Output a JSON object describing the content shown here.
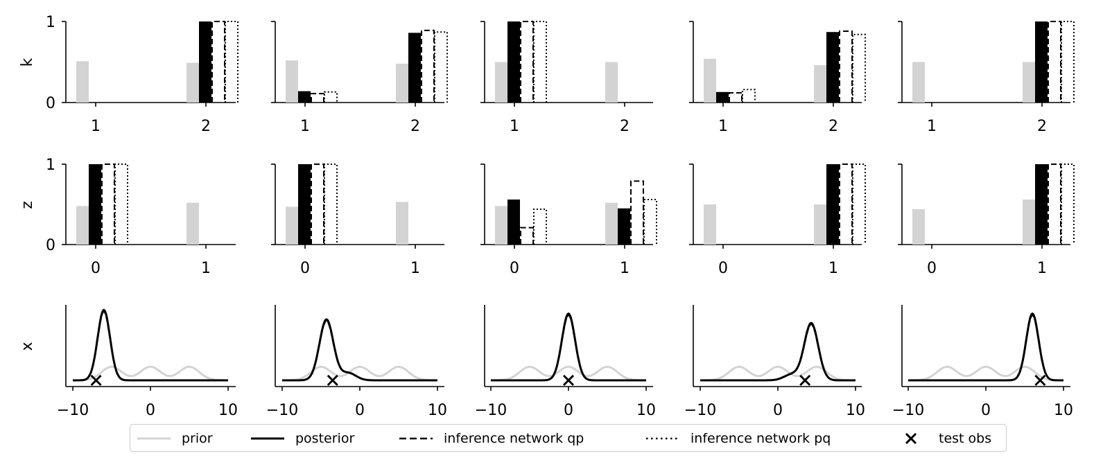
{
  "chart_data": {
    "type": "grid of bar charts and line plots",
    "columns": 5,
    "row_labels": [
      "k",
      "z",
      "x"
    ],
    "legend": {
      "placement": "bottom-center",
      "entries": [
        {
          "label": "prior",
          "style": "light gray solid line",
          "color": "#d3d3d3"
        },
        {
          "label": "posterior",
          "style": "black solid line",
          "color": "#000000"
        },
        {
          "label": "inference network qp",
          "style": "black dashed line",
          "color": "#000000"
        },
        {
          "label": "inference network pq",
          "style": "black dotted line",
          "color": "#000000"
        },
        {
          "label": "test obs",
          "style": "black x marker",
          "color": "#000000"
        }
      ]
    },
    "k_rows": {
      "categories": [
        "1",
        "2"
      ],
      "ylim": [
        0,
        1
      ],
      "yticks": [
        "0",
        "1"
      ],
      "panels": [
        {
          "prior": [
            0.51,
            0.49
          ],
          "posterior": [
            0.0,
            1.0
          ],
          "qp": [
            0.0,
            1.0
          ],
          "pq": [
            0.0,
            1.0
          ]
        },
        {
          "prior": [
            0.52,
            0.48
          ],
          "posterior": [
            0.14,
            0.86
          ],
          "qp": [
            0.11,
            0.89
          ],
          "pq": [
            0.13,
            0.87
          ]
        },
        {
          "prior": [
            0.5,
            0.5
          ],
          "posterior": [
            1.0,
            0.0
          ],
          "qp": [
            1.0,
            0.0
          ],
          "pq": [
            1.0,
            0.0
          ]
        },
        {
          "prior": [
            0.54,
            0.46
          ],
          "posterior": [
            0.13,
            0.87
          ],
          "qp": [
            0.12,
            0.88
          ],
          "pq": [
            0.16,
            0.84
          ]
        },
        {
          "prior": [
            0.5,
            0.5
          ],
          "posterior": [
            0.0,
            1.0
          ],
          "qp": [
            0.0,
            1.0
          ],
          "pq": [
            0.0,
            1.0
          ]
        }
      ]
    },
    "z_rows": {
      "categories": [
        "0",
        "1"
      ],
      "ylim": [
        0,
        1
      ],
      "yticks": [
        "0",
        "1"
      ],
      "panels": [
        {
          "prior": [
            0.48,
            0.52
          ],
          "posterior": [
            1.0,
            0.0
          ],
          "qp": [
            1.0,
            0.0
          ],
          "pq": [
            1.0,
            0.0
          ]
        },
        {
          "prior": [
            0.47,
            0.53
          ],
          "posterior": [
            1.0,
            0.0
          ],
          "qp": [
            1.0,
            0.0
          ],
          "pq": [
            1.0,
            0.0
          ]
        },
        {
          "prior": [
            0.48,
            0.52
          ],
          "posterior": [
            0.56,
            0.45
          ],
          "qp": [
            0.21,
            0.79
          ],
          "pq": [
            0.44,
            0.56
          ]
        },
        {
          "prior": [
            0.5,
            0.5
          ],
          "posterior": [
            0.0,
            1.0
          ],
          "qp": [
            0.0,
            1.0
          ],
          "pq": [
            0.0,
            1.0
          ]
        },
        {
          "prior": [
            0.44,
            0.56
          ],
          "posterior": [
            0.0,
            1.0
          ],
          "qp": [
            0.0,
            1.0
          ],
          "pq": [
            0.0,
            1.0
          ]
        }
      ]
    },
    "x_rows": {
      "xlim": [
        -10,
        10
      ],
      "xticks": [
        "−10",
        "0",
        "10"
      ],
      "prior_modes": [
        -5,
        0,
        5
      ],
      "panels": [
        {
          "test_obs": -7.0,
          "posterior_mean": -6.0,
          "posterior_sd": 0.8,
          "posterior_peak": 0.95
        },
        {
          "test_obs": -3.5,
          "posterior_mean": -4.3,
          "posterior_sd": 0.9,
          "posterior_peak": 0.82,
          "posterior_bump": {
            "mean": -1.5,
            "sd": 1.0,
            "height": 0.1
          }
        },
        {
          "test_obs": 0.0,
          "posterior_mean": 0.0,
          "posterior_sd": 0.85,
          "posterior_peak": 0.9
        },
        {
          "test_obs": 3.5,
          "posterior_mean": 4.3,
          "posterior_sd": 0.9,
          "posterior_peak": 0.77,
          "posterior_bump": {
            "mean": 1.8,
            "sd": 1.0,
            "height": 0.08
          }
        },
        {
          "test_obs": 7.0,
          "posterior_mean": 6.0,
          "posterior_sd": 0.8,
          "posterior_peak": 0.9
        }
      ]
    }
  },
  "colors": {
    "prior": "#d3d3d3",
    "posterior": "#000000",
    "axis": "#000000"
  }
}
